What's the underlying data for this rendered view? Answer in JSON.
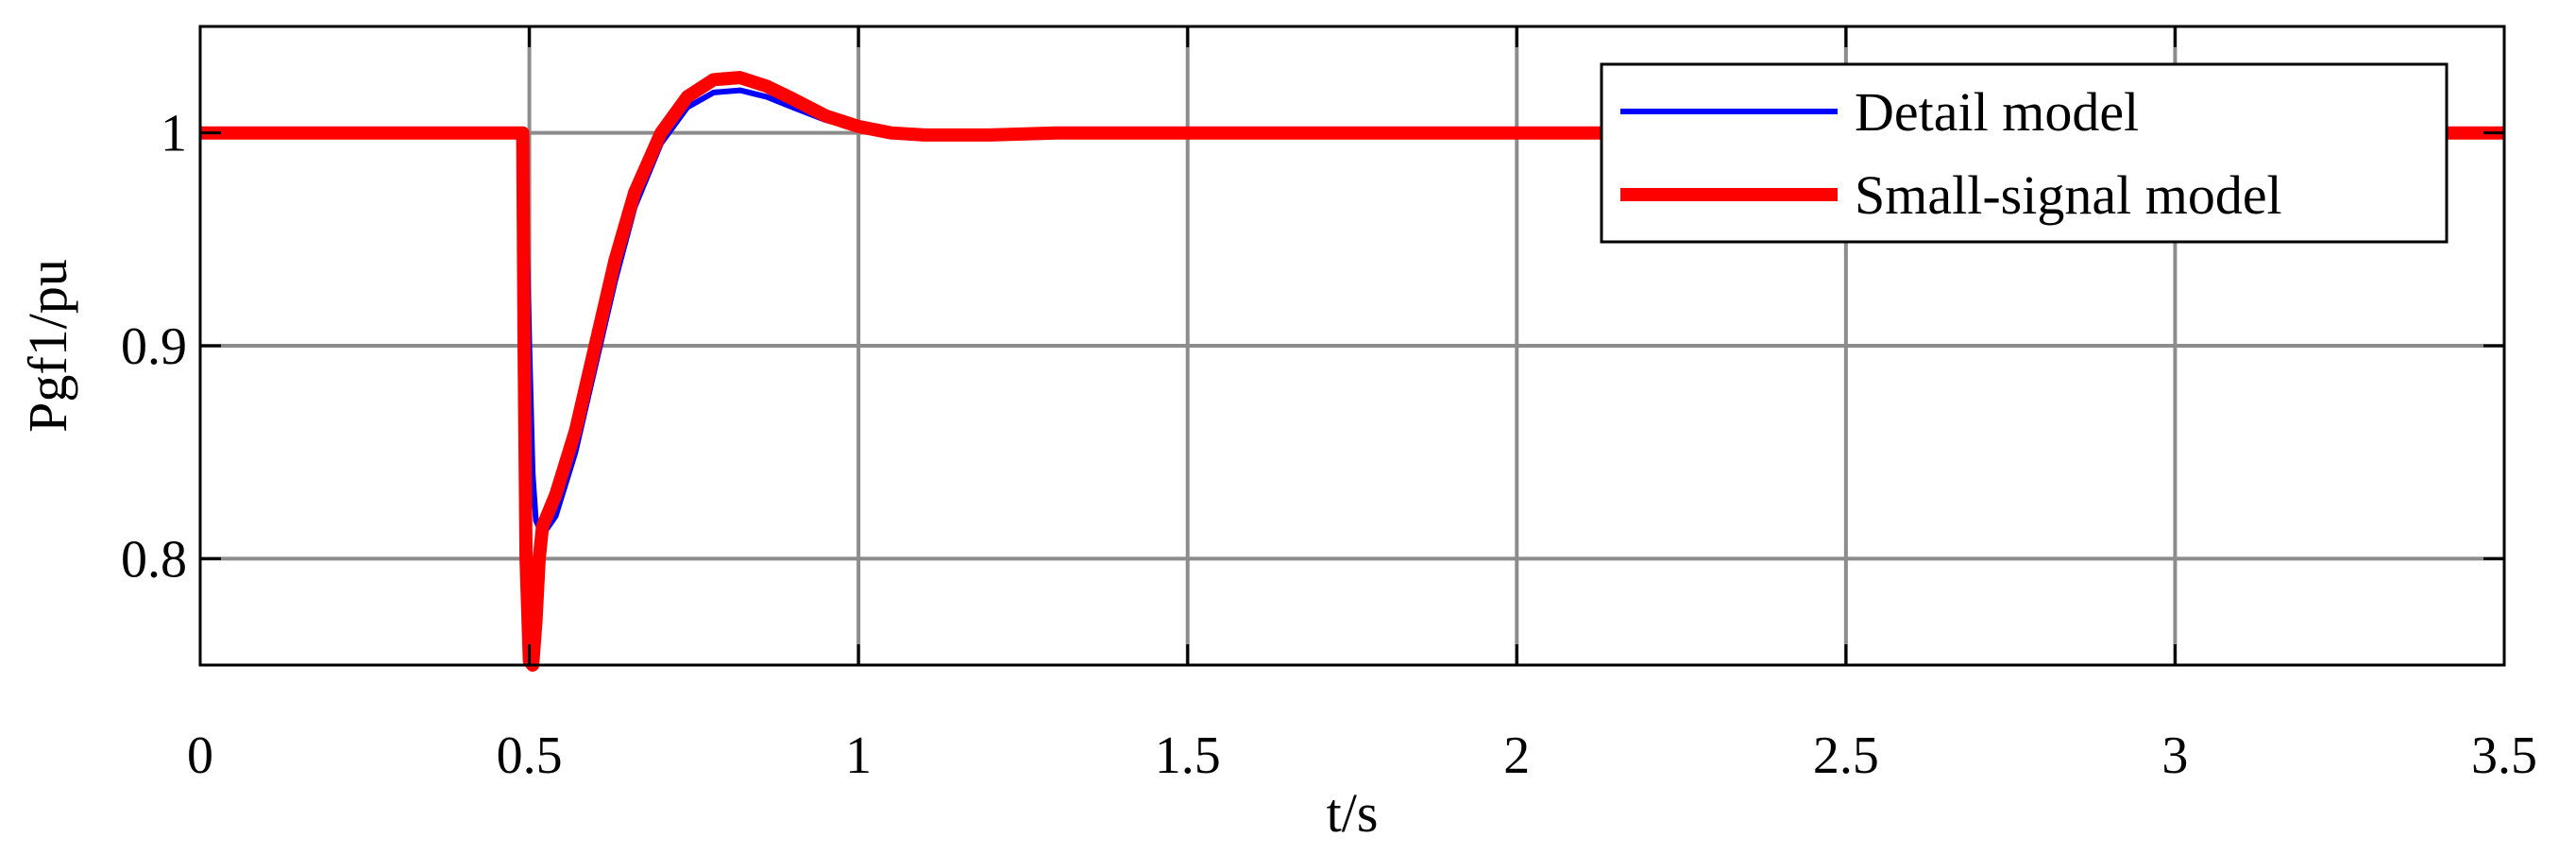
{
  "chart_data": {
    "type": "line",
    "title": "",
    "xlabel": "t/s",
    "ylabel": "Pgf1/pu",
    "xlim": [
      0,
      3.5
    ],
    "ylim": [
      0.75,
      1.05
    ],
    "x_ticks": [
      0,
      0.5,
      1,
      1.5,
      2,
      2.5,
      3,
      3.5
    ],
    "x_tick_labels": [
      "0",
      "0.5",
      "1",
      "1.5",
      "2",
      "2.5",
      "3",
      "3.5"
    ],
    "y_ticks": [
      0.8,
      0.9,
      1.0
    ],
    "y_tick_labels": [
      "0.8",
      "0.9",
      "1"
    ],
    "grid": true,
    "legend_position": "top-right",
    "series": [
      {
        "name": "Detail model",
        "color": "#0000ff",
        "points": [
          [
            0,
            1.0
          ],
          [
            0.49,
            1.0
          ],
          [
            0.495,
            0.97
          ],
          [
            0.5,
            0.9
          ],
          [
            0.505,
            0.84
          ],
          [
            0.51,
            0.818
          ],
          [
            0.52,
            0.811
          ],
          [
            0.54,
            0.82
          ],
          [
            0.57,
            0.85
          ],
          [
            0.6,
            0.89
          ],
          [
            0.63,
            0.93
          ],
          [
            0.66,
            0.965
          ],
          [
            0.7,
            0.995
          ],
          [
            0.74,
            1.012
          ],
          [
            0.78,
            1.019
          ],
          [
            0.82,
            1.02
          ],
          [
            0.86,
            1.017
          ],
          [
            0.9,
            1.012
          ],
          [
            0.95,
            1.006
          ],
          [
            1.0,
            1.002
          ],
          [
            1.05,
            1.0
          ],
          [
            1.1,
            0.999
          ],
          [
            1.2,
            0.999
          ],
          [
            1.3,
            1.0
          ],
          [
            1.5,
            1.0
          ],
          [
            2.0,
            1.0
          ],
          [
            2.5,
            1.0
          ],
          [
            3.0,
            1.0
          ],
          [
            3.5,
            0.999
          ]
        ]
      },
      {
        "name": "Small-signal model",
        "color": "#ff0000",
        "points": [
          [
            0,
            1.0
          ],
          [
            0.49,
            1.0
          ],
          [
            0.492,
            0.9
          ],
          [
            0.495,
            0.8
          ],
          [
            0.5,
            0.752
          ],
          [
            0.505,
            0.75
          ],
          [
            0.51,
            0.77
          ],
          [
            0.515,
            0.8
          ],
          [
            0.52,
            0.815
          ],
          [
            0.54,
            0.83
          ],
          [
            0.57,
            0.86
          ],
          [
            0.6,
            0.9
          ],
          [
            0.63,
            0.94
          ],
          [
            0.66,
            0.972
          ],
          [
            0.7,
            1.0
          ],
          [
            0.74,
            1.017
          ],
          [
            0.78,
            1.025
          ],
          [
            0.82,
            1.026
          ],
          [
            0.86,
            1.022
          ],
          [
            0.9,
            1.016
          ],
          [
            0.95,
            1.008
          ],
          [
            1.0,
            1.003
          ],
          [
            1.05,
            1.0
          ],
          [
            1.1,
            0.999
          ],
          [
            1.2,
            0.999
          ],
          [
            1.3,
            1.0
          ],
          [
            1.5,
            1.0
          ],
          [
            2.0,
            1.0
          ],
          [
            2.5,
            1.0
          ],
          [
            3.0,
            1.0
          ],
          [
            3.5,
            1.0
          ]
        ]
      }
    ]
  }
}
